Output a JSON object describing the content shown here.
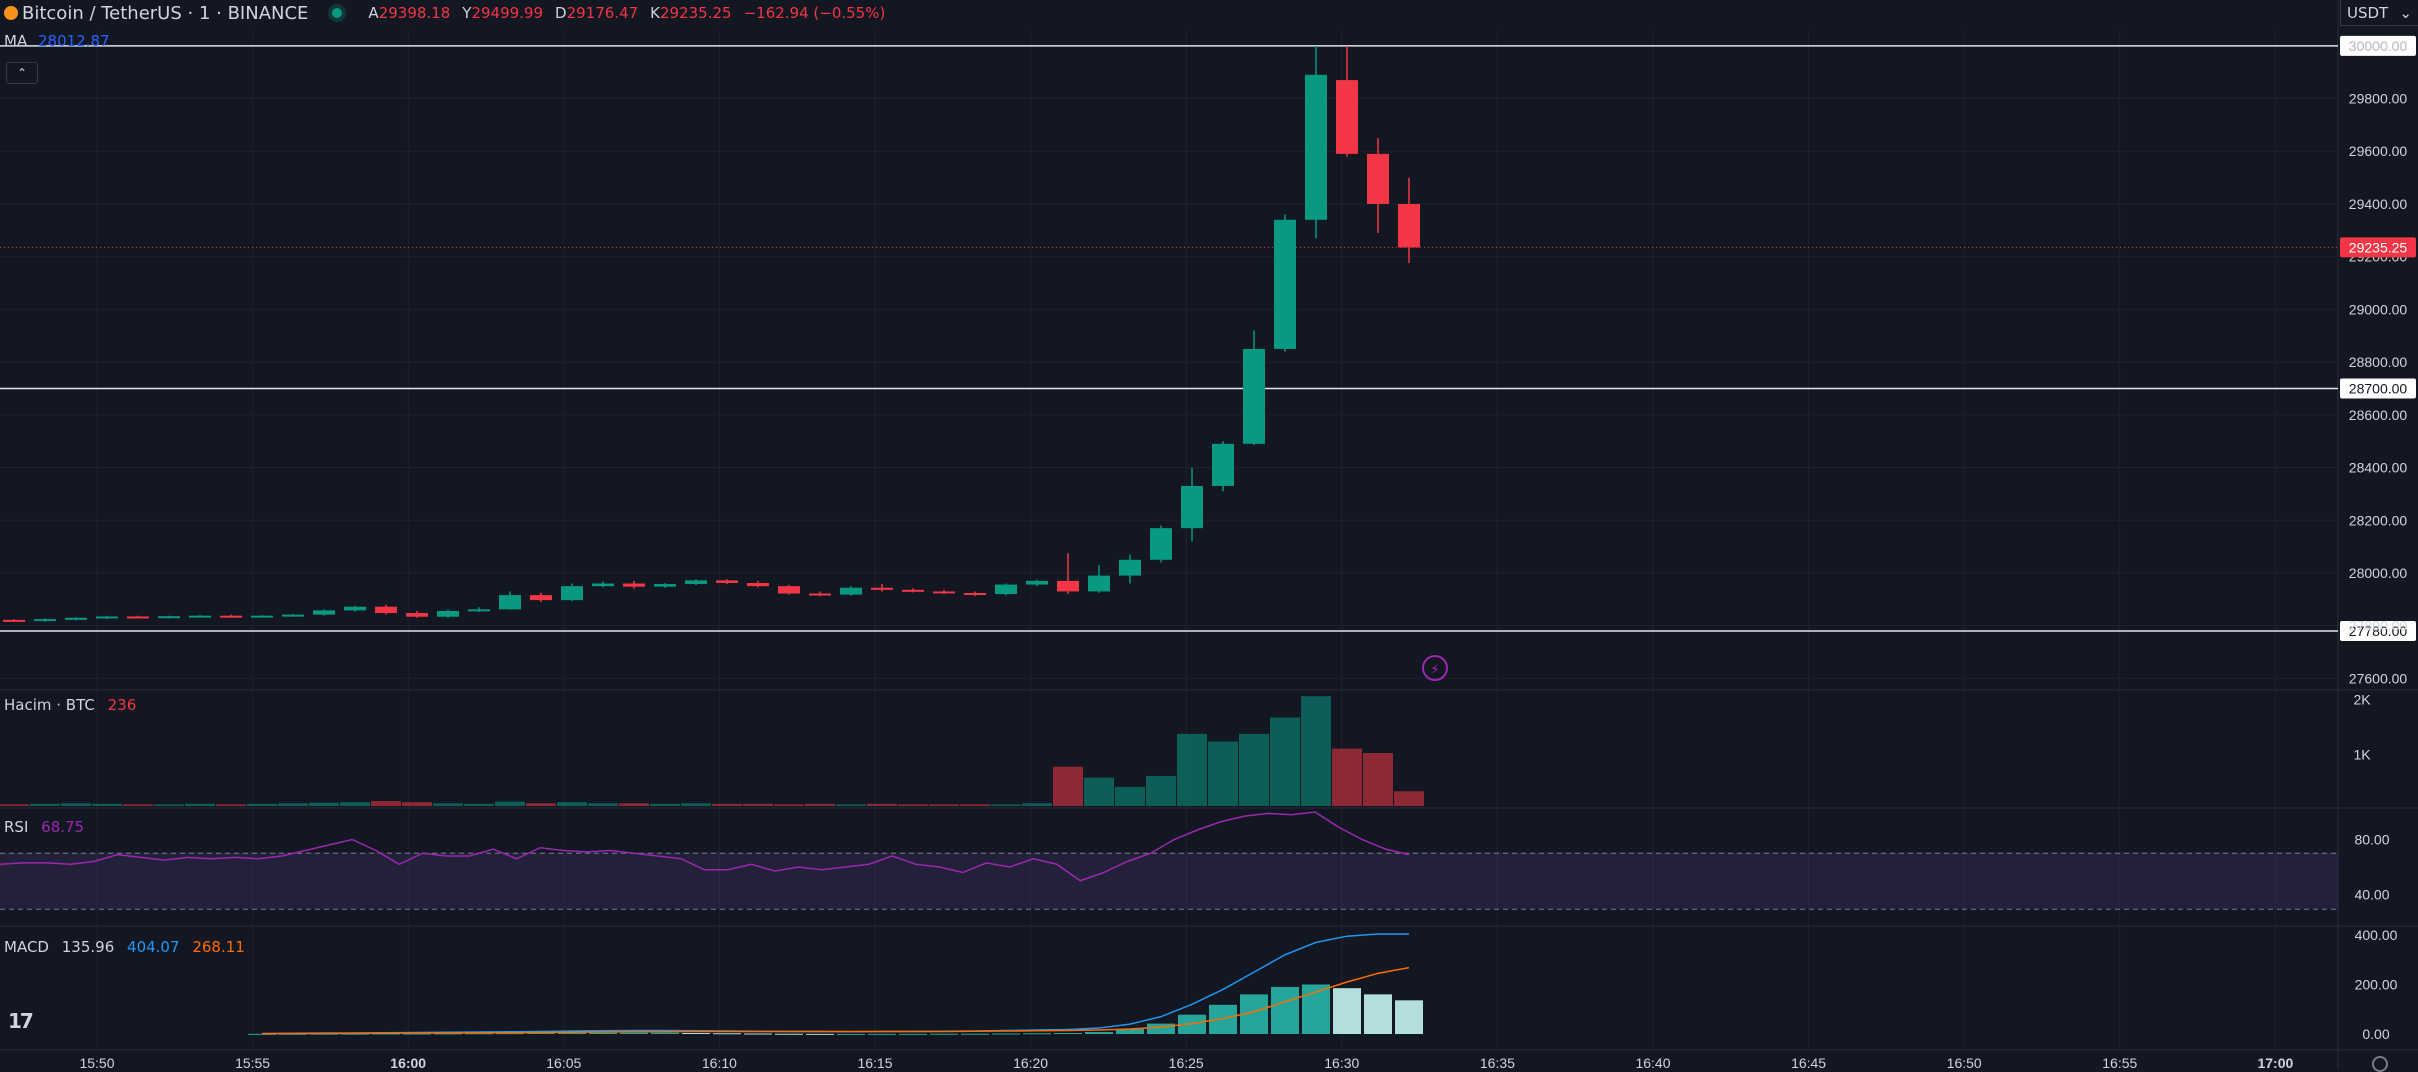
{
  "header": {
    "symbol": "Bitcoin / TetherUS · 1 · BINANCE",
    "ohlc": [
      {
        "k": "A",
        "v": "29398.18"
      },
      {
        "k": "Y",
        "v": "29499.99"
      },
      {
        "k": "D",
        "v": "29176.47"
      },
      {
        "k": "K",
        "v": "29235.25"
      },
      {
        "k": "",
        "v": "−162.94 (−0.55%)"
      }
    ],
    "currency": "USDT"
  },
  "indicators": {
    "ma": {
      "label": "MA",
      "value": "28012.87"
    },
    "volume": {
      "label": "Hacim · BTC",
      "value": "236"
    },
    "rsi": {
      "label": "RSI",
      "value": "68.75"
    },
    "macd": {
      "label": "MACD",
      "v1": "135.96",
      "v2": "404.07",
      "v3": "268.11"
    }
  },
  "colors": {
    "bg": "#131722",
    "up": "#089981",
    "down": "#f23645",
    "grid": "#1e222d",
    "text": "#d1d4dc",
    "rsi": "#9c27b0",
    "macd": "#2196f3",
    "signal": "#ff6d00"
  },
  "chart_data": {
    "type": "candlestick",
    "x_ticks": [
      "15:50",
      "15:55",
      "16:00",
      "16:05",
      "16:10",
      "16:15",
      "16:20",
      "16:25",
      "16:30",
      "16:35",
      "16:40",
      "16:45",
      "16:50",
      "16:55",
      "17:00"
    ],
    "price_ticks": [
      "30000.00",
      "29800.00",
      "29600.00",
      "29400.00",
      "29200.00",
      "29000.00",
      "28800.00",
      "28600.00",
      "28400.00",
      "28200.00",
      "28000.00",
      "27800.00",
      "27600.00"
    ],
    "last_price": "29235.25",
    "horizontal_lines": [
      {
        "value": 30000,
        "label": "30000.00"
      },
      {
        "value": 28700,
        "label": "28700.00"
      },
      {
        "value": 27780,
        "label": "27780.00"
      }
    ],
    "candles": [
      [
        27822,
        27825,
        27817,
        27820
      ],
      [
        27820,
        27828,
        27815,
        27825
      ],
      [
        27825,
        27832,
        27820,
        27830
      ],
      [
        27830,
        27837,
        27826,
        27835
      ],
      [
        27835,
        27838,
        27830,
        27832
      ],
      [
        27832,
        27838,
        27828,
        27836
      ],
      [
        27836,
        27840,
        27832,
        27838
      ],
      [
        27838,
        27842,
        27834,
        27836
      ],
      [
        27836,
        27840,
        27832,
        27838
      ],
      [
        27838,
        27844,
        27834,
        27842
      ],
      [
        27842,
        27862,
        27838,
        27858
      ],
      [
        27858,
        27876,
        27854,
        27872
      ],
      [
        27872,
        27880,
        27842,
        27848
      ],
      [
        27848,
        27856,
        27830,
        27834
      ],
      [
        27834,
        27860,
        27830,
        27856
      ],
      [
        27856,
        27870,
        27852,
        27862
      ],
      [
        27862,
        27930,
        27860,
        27916
      ],
      [
        27916,
        27925,
        27890,
        27897
      ],
      [
        27897,
        27960,
        27894,
        27950
      ],
      [
        27950,
        27968,
        27946,
        27960
      ],
      [
        27960,
        27970,
        27940,
        27948
      ],
      [
        27948,
        27962,
        27944,
        27958
      ],
      [
        27958,
        27976,
        27954,
        27972
      ],
      [
        27972,
        27976,
        27958,
        27962
      ],
      [
        27962,
        27970,
        27945,
        27950
      ],
      [
        27950,
        27955,
        27918,
        27922
      ],
      [
        27922,
        27930,
        27912,
        27918
      ],
      [
        27918,
        27950,
        27914,
        27944
      ],
      [
        27944,
        27958,
        27930,
        27936
      ],
      [
        27936,
        27942,
        27926,
        27930
      ],
      [
        27930,
        27936,
        27920,
        27924
      ],
      [
        27924,
        27930,
        27912,
        27920
      ],
      [
        27920,
        27960,
        27915,
        27956
      ],
      [
        27956,
        27975,
        27950,
        27970
      ],
      [
        27970,
        28075,
        27920,
        27930
      ],
      [
        27930,
        28030,
        27925,
        27990
      ],
      [
        27990,
        28070,
        27960,
        28050
      ],
      [
        28050,
        28180,
        28040,
        28170
      ],
      [
        28170,
        28400,
        28120,
        28330
      ],
      [
        28330,
        28500,
        28310,
        28490
      ],
      [
        28490,
        28920,
        28485,
        28850
      ],
      [
        28850,
        29360,
        28840,
        29340
      ],
      [
        29340,
        30000,
        29270,
        29890
      ],
      [
        29870,
        29999,
        29580,
        29590
      ],
      [
        29590,
        29650,
        29290,
        29400
      ],
      [
        29400,
        29500,
        29176,
        29235
      ]
    ],
    "volume_ticks": [
      "2K",
      "1K"
    ],
    "volume": [
      0.03,
      0.04,
      0.05,
      0.04,
      0.03,
      0.03,
      0.04,
      0.03,
      0.04,
      0.05,
      0.06,
      0.07,
      0.09,
      0.07,
      0.05,
      0.04,
      0.08,
      0.05,
      0.07,
      0.05,
      0.05,
      0.04,
      0.05,
      0.04,
      0.04,
      0.03,
      0.04,
      0.03,
      0.04,
      0.03,
      0.03,
      0.03,
      0.03,
      0.05,
      0.72,
      0.52,
      0.35,
      0.55,
      1.32,
      1.18,
      1.32,
      1.62,
      2.01,
      1.05,
      0.97,
      0.27
    ],
    "rsi_ticks": [
      "80.00",
      "40.00"
    ],
    "rsi": [
      62,
      63,
      63,
      62,
      64,
      69,
      67,
      65,
      67,
      66,
      67,
      66,
      68,
      72,
      76,
      80,
      72,
      62,
      70,
      68,
      68,
      73,
      66,
      74,
      72,
      71,
      72,
      70,
      68,
      66,
      58,
      58,
      62,
      57,
      60,
      58,
      60,
      62,
      68,
      62,
      60,
      56,
      63,
      60,
      66,
      62,
      50,
      56,
      64,
      70,
      80,
      87,
      93,
      97,
      99,
      98,
      100,
      89,
      80,
      73,
      69
    ],
    "rsi_bands": [
      70,
      30
    ],
    "macd_ticks": [
      "400.00",
      "200.00",
      "0.00"
    ],
    "macd_line": [
      2,
      3,
      4,
      4,
      5,
      6,
      7,
      8,
      9,
      10,
      12,
      13,
      14,
      14,
      13,
      12,
      11,
      10,
      10,
      9,
      10,
      10,
      11,
      12,
      14,
      16,
      18,
      24,
      40,
      70,
      120,
      180,
      250,
      320,
      370,
      395,
      404,
      404
    ],
    "signal_line": [
      1,
      2,
      2,
      3,
      3,
      4,
      4,
      5,
      5,
      6,
      7,
      8,
      9,
      9,
      10,
      10,
      10,
      10,
      10,
      10,
      10,
      10,
      10,
      11,
      12,
      13,
      14,
      16,
      20,
      28,
      42,
      62,
      90,
      130,
      170,
      210,
      245,
      268
    ],
    "macd_hist": [
      0.5,
      1,
      1.5,
      1.5,
      2,
      2,
      2.5,
      3,
      3.5,
      4,
      4.5,
      5,
      5,
      5,
      4,
      3,
      2,
      1,
      0.5,
      0.5,
      0.5,
      0.5,
      1,
      1,
      2,
      3,
      4,
      8,
      20,
      42,
      78,
      118,
      160,
      190,
      200,
      185,
      160,
      136
    ]
  }
}
